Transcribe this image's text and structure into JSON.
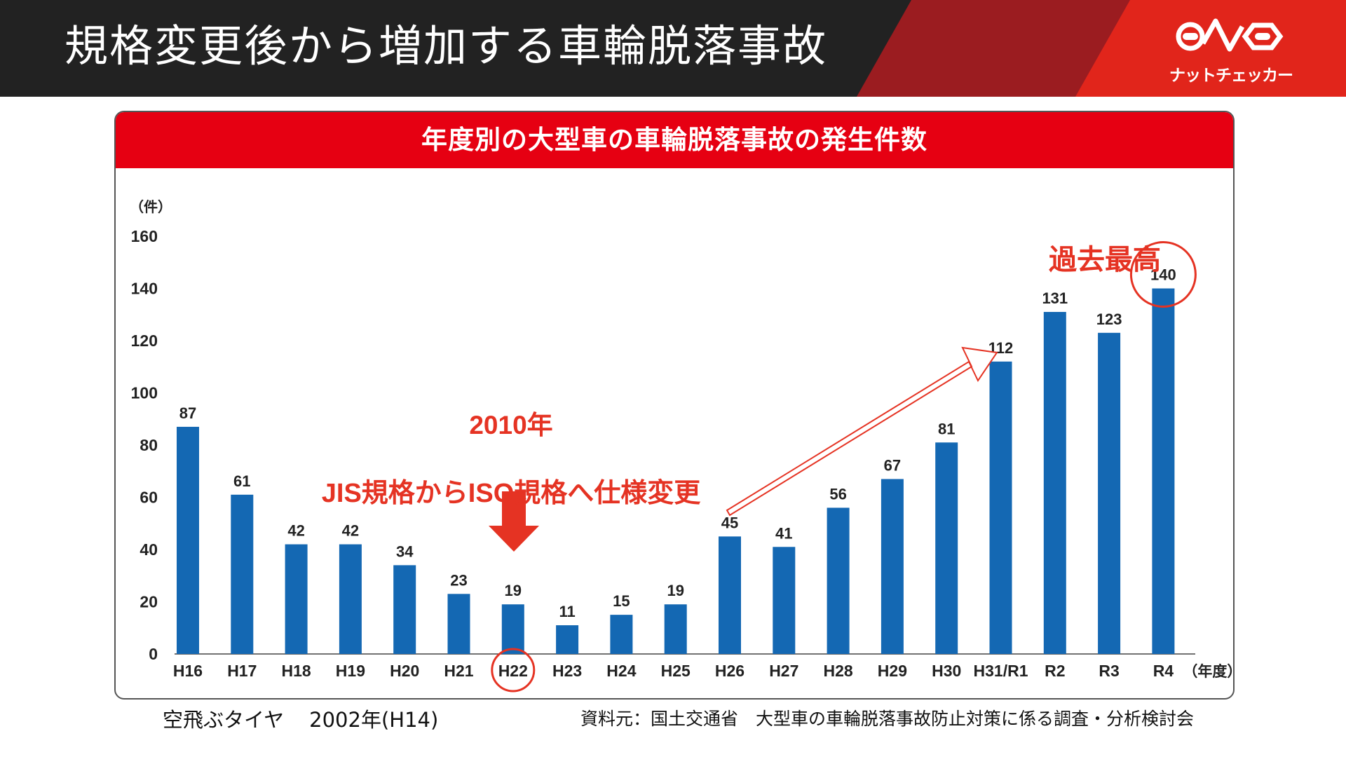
{
  "slide": {
    "title": "規格変更後から増加する車輪脱落事故",
    "logo_text": "ナットチェッカー",
    "colors": {
      "header_dark": "#222222",
      "band_dark_red": "#9b1c20",
      "band_red": "#e1251b"
    }
  },
  "chart_title": "年度別の大型車の車輪脱落事故の発生件数",
  "chart_data": {
    "type": "bar",
    "title": "年度別の大型車の車輪脱落事故の発生件数",
    "y_unit_label": "（件）",
    "x_unit_label": "（年度）",
    "categories": [
      "H16",
      "H17",
      "H18",
      "H19",
      "H20",
      "H21",
      "H22",
      "H23",
      "H24",
      "H25",
      "H26",
      "H27",
      "H28",
      "H29",
      "H30",
      "H31/R1",
      "R2",
      "R3",
      "R4"
    ],
    "values": [
      87,
      61,
      42,
      42,
      34,
      23,
      19,
      11,
      15,
      19,
      45,
      41,
      56,
      67,
      81,
      112,
      131,
      123,
      140
    ],
    "yticks": [
      0,
      20,
      40,
      60,
      80,
      100,
      120,
      140,
      160
    ],
    "ylim": [
      0,
      160
    ],
    "bar_color": "#1468b3",
    "highlight_color": "#e53323",
    "highlight_category": "H22",
    "highlight_value_category": "R4"
  },
  "annotations": {
    "year": "2010年",
    "change": "JIS規格からISO規格へ仕様変更",
    "record": "過去最高"
  },
  "footer": {
    "left_a": "空飛ぶタイヤ",
    "left_b": "2002年(H14)",
    "right": "資料元：国土交通省　大型車の車輪脱落事故防止対策に係る調査・分析検討会"
  }
}
